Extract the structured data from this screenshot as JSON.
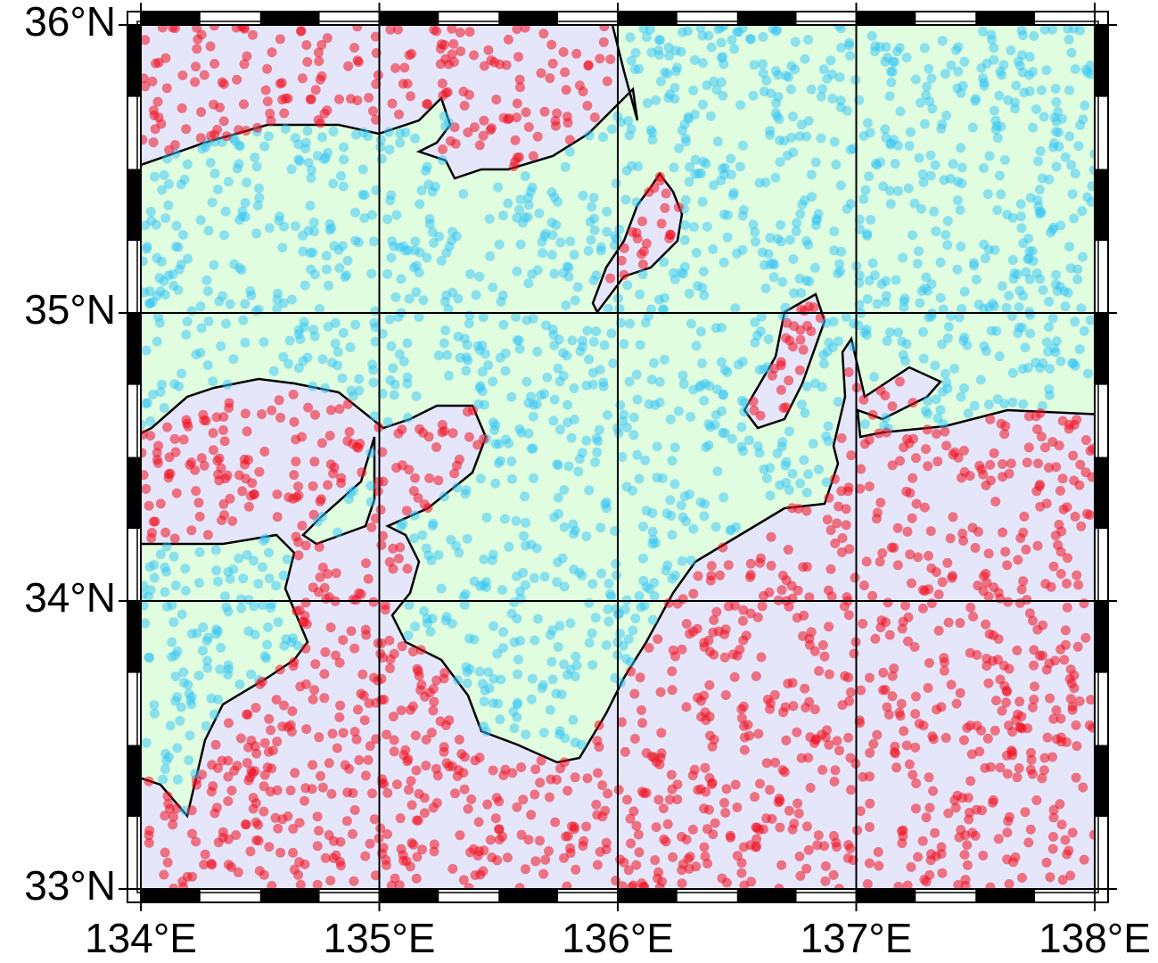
{
  "map": {
    "xlim": [
      134,
      138
    ],
    "ylim": [
      33,
      36
    ],
    "x_ticks": [
      {
        "value": 134,
        "label": "134°E"
      },
      {
        "value": 135,
        "label": "135°E"
      },
      {
        "value": 136,
        "label": "136°E"
      },
      {
        "value": 137,
        "label": "137°E"
      },
      {
        "value": 138,
        "label": "138°E"
      }
    ],
    "y_ticks": [
      {
        "value": 33,
        "label": "33°N"
      },
      {
        "value": 34,
        "label": "34°N"
      },
      {
        "value": 35,
        "label": "35°N"
      },
      {
        "value": 36,
        "label": "36°N"
      }
    ]
  }
}
